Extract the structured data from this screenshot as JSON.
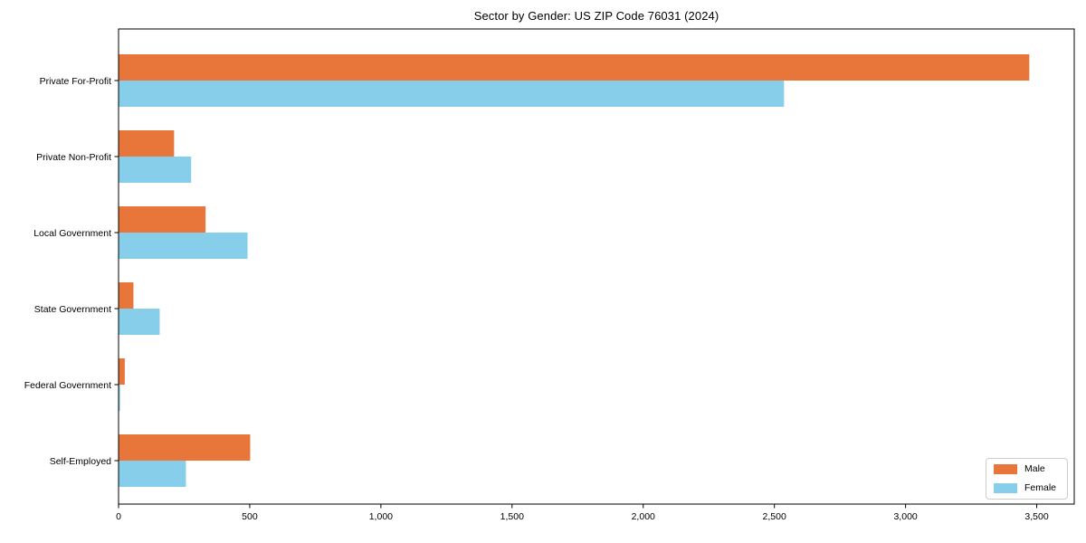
{
  "chart_data": {
    "type": "bar",
    "orientation": "horizontal",
    "title": "Sector by Gender: US ZIP Code 76031 (2024)",
    "categories": [
      "Private For-Profit",
      "Private Non-Profit",
      "Local Government",
      "State Government",
      "Federal Government",
      "Self-Employed"
    ],
    "series": [
      {
        "name": "Male",
        "color": "#E8763B",
        "values": [
          3470,
          210,
          330,
          55,
          22,
          500
        ]
      },
      {
        "name": "Female",
        "color": "#87CEEB",
        "values": [
          2535,
          275,
          490,
          155,
          4,
          255
        ]
      }
    ],
    "xlabel": "",
    "ylabel": "",
    "xlim": [
      0,
      3643
    ],
    "x_ticks": [
      0,
      500,
      1000,
      1500,
      2000,
      2500,
      3000,
      3500
    ],
    "x_tick_labels": [
      "0",
      "500",
      "1,000",
      "1,500",
      "2,000",
      "2,500",
      "3,000",
      "3,500"
    ],
    "grid": false,
    "legend_position": "lower right",
    "axis_color": "#000000",
    "background_color": "#ffffff"
  }
}
